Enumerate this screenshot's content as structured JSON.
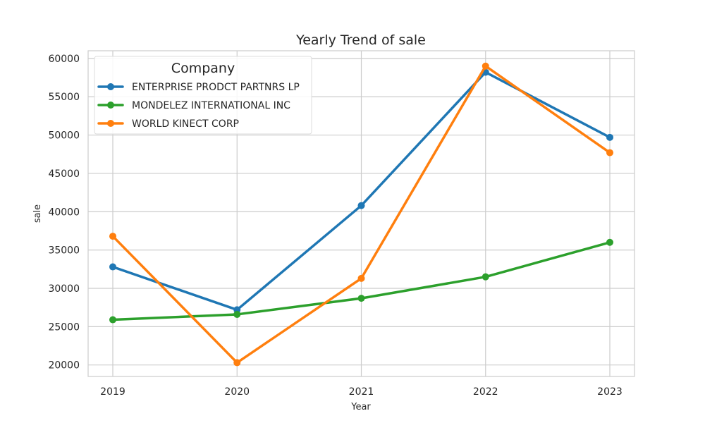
{
  "chart_data": {
    "type": "line",
    "title": "Yearly Trend of sale",
    "xlabel": "Year",
    "ylabel": "sale",
    "categories": [
      "2019",
      "2020",
      "2021",
      "2022",
      "2023"
    ],
    "ylim": [
      18500,
      61000
    ],
    "yticks": [
      "20000",
      "25000",
      "30000",
      "35000",
      "40000",
      "45000",
      "50000",
      "55000",
      "60000"
    ],
    "grid": true,
    "legend": {
      "title": "Company",
      "position": "top-left"
    },
    "series": [
      {
        "name": "ENTERPRISE PRODCT PARTNRS LP",
        "color": "#1f77b4",
        "values": [
          32800,
          27200,
          40800,
          58200,
          49700
        ]
      },
      {
        "name": "MONDELEZ INTERNATIONAL INC",
        "color": "#2ca02c",
        "values": [
          25900,
          26600,
          28700,
          31500,
          36000
        ]
      },
      {
        "name": "WORLD KINECT CORP",
        "color": "#ff7f0e",
        "values": [
          36800,
          20300,
          31300,
          59000,
          47700
        ]
      }
    ]
  }
}
